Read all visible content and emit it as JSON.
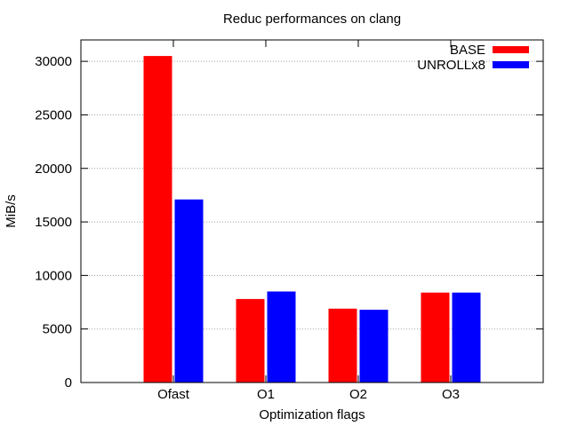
{
  "chart_data": {
    "type": "bar",
    "title": "Reduc performances on clang",
    "xlabel": "Optimization flags",
    "ylabel": "MiB/s",
    "categories": [
      "Ofast",
      "O1",
      "O2",
      "O3"
    ],
    "series": [
      {
        "name": "BASE",
        "color": "#ff0000",
        "values": [
          30500,
          7800,
          6900,
          8400
        ]
      },
      {
        "name": "UNROLLx8",
        "color": "#0000ff",
        "values": [
          17100,
          8500,
          6800,
          8400
        ]
      }
    ],
    "ylim": [
      0,
      32000
    ],
    "yticks": [
      0,
      5000,
      10000,
      15000,
      20000,
      25000,
      30000
    ],
    "grid": true,
    "legend_position": "top-right"
  }
}
